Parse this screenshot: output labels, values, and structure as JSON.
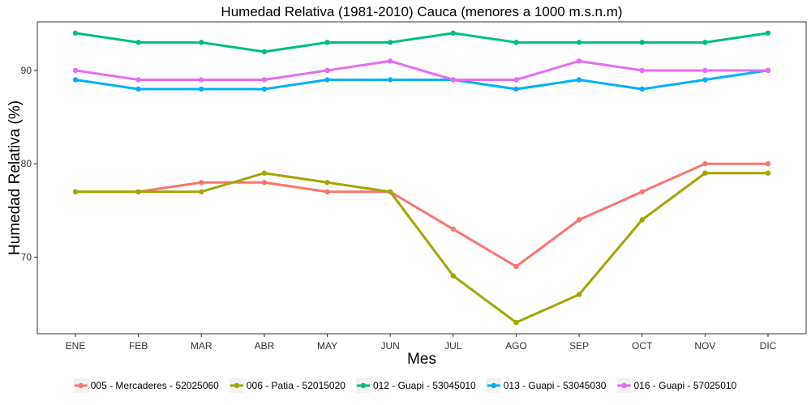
{
  "chart_data": {
    "type": "line",
    "title": "Humedad Relativa (1981-2010) Cauca (menores a 1000 m.s.n.m)",
    "xlabel": "Mes",
    "ylabel": "Humedad Relativa (%)",
    "categories": [
      "ENE",
      "FEB",
      "MAR",
      "ABR",
      "MAY",
      "JUN",
      "JUL",
      "AGO",
      "SEP",
      "OCT",
      "NOV",
      "DIC"
    ],
    "yticks": [
      70,
      80,
      90
    ],
    "ylim": [
      61.8,
      95.2
    ],
    "grid": false,
    "legend_position": "bottom",
    "series": [
      {
        "name": "005 - Mercaderes - 52025060",
        "color": "#F8766D",
        "values": [
          77,
          77,
          78,
          78,
          77,
          77,
          73,
          69,
          74,
          77,
          80,
          80
        ]
      },
      {
        "name": "006 - Patia - 52015020",
        "color": "#A3A500",
        "values": [
          77,
          77,
          77,
          79,
          78,
          77,
          68,
          63,
          66,
          74,
          79,
          79
        ]
      },
      {
        "name": "012 - Guapi - 53045010",
        "color": "#00BF7D",
        "values": [
          94,
          93,
          93,
          92,
          93,
          93,
          94,
          93,
          93,
          93,
          93,
          94
        ]
      },
      {
        "name": "013 - Guapi - 53045030",
        "color": "#00B0F6",
        "values": [
          89,
          88,
          88,
          88,
          89,
          89,
          89,
          88,
          89,
          88,
          89,
          90
        ]
      },
      {
        "name": "016 - Guapi - 57025010",
        "color": "#E76BF3",
        "values": [
          90,
          89,
          89,
          89,
          90,
          91,
          89,
          89,
          91,
          90,
          90,
          90
        ]
      }
    ]
  }
}
